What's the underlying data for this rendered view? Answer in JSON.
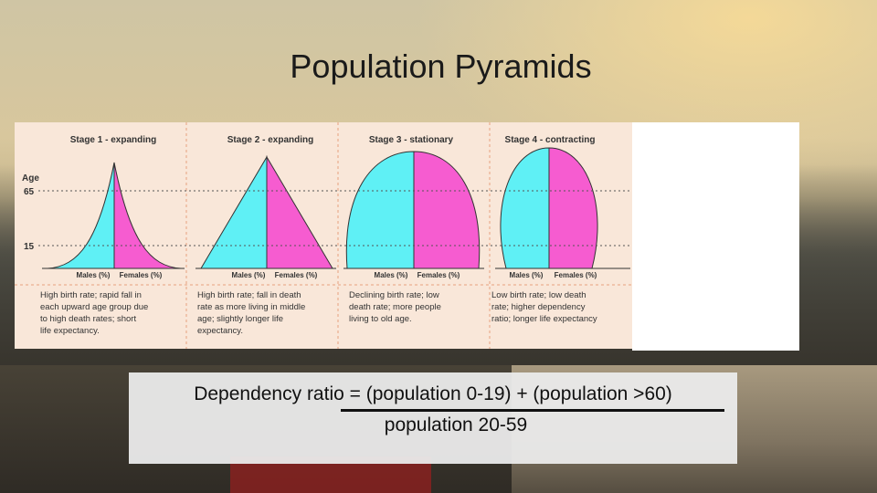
{
  "slide": {
    "title": "Population Pyramids"
  },
  "figure": {
    "age_label": "Age",
    "age_ticks": [
      "65",
      "15"
    ],
    "stages": [
      {
        "heading": "Stage 1 - expanding",
        "males_label": "Males (%)",
        "females_label": "Females (%)",
        "desc": [
          "High birth rate; rapid fall in",
          "each upward age group due",
          "to high death rates; short",
          "life expectancy."
        ]
      },
      {
        "heading": "Stage 2 - expanding",
        "males_label": "Males (%)",
        "females_label": "Females (%)",
        "desc": [
          "High birth rate; fall in death",
          "rate as more living in middle",
          "age; slightly longer life",
          "expectancy."
        ]
      },
      {
        "heading": "Stage 3 - stationary",
        "males_label": "Males (%)",
        "females_label": "Females (%)",
        "desc": [
          "Declining birth rate; low",
          "death rate; more people",
          "living to old age."
        ]
      },
      {
        "heading": "Stage 4 - contracting",
        "males_label": "Males (%)",
        "females_label": "Females (%)",
        "desc": [
          "Low birth rate; low death",
          "rate; higher dependency",
          "ratio; longer life expectancy"
        ]
      }
    ],
    "colors": {
      "male": "#5ff0f5",
      "female": "#f65cd0",
      "panel": "#f9e7d9",
      "divider": "#e8a080",
      "guide": "#555555"
    }
  },
  "dependency": {
    "numerator": "Dependency ratio = (population 0-19) + (population >60)",
    "denominator": "population 20-59"
  }
}
